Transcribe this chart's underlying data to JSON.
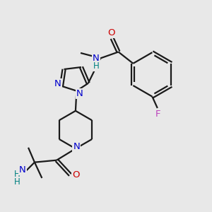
{
  "bg_color": "#e8e8e8",
  "bond_color": "#1a1a1a",
  "N_color": "#0000cc",
  "O_color": "#cc0000",
  "F_color": "#bb44bb",
  "H_color": "#008080",
  "line_width": 1.6,
  "figsize": [
    3.0,
    3.0
  ],
  "dpi": 100,
  "xlim": [
    0,
    10
  ],
  "ylim": [
    0,
    10
  ]
}
